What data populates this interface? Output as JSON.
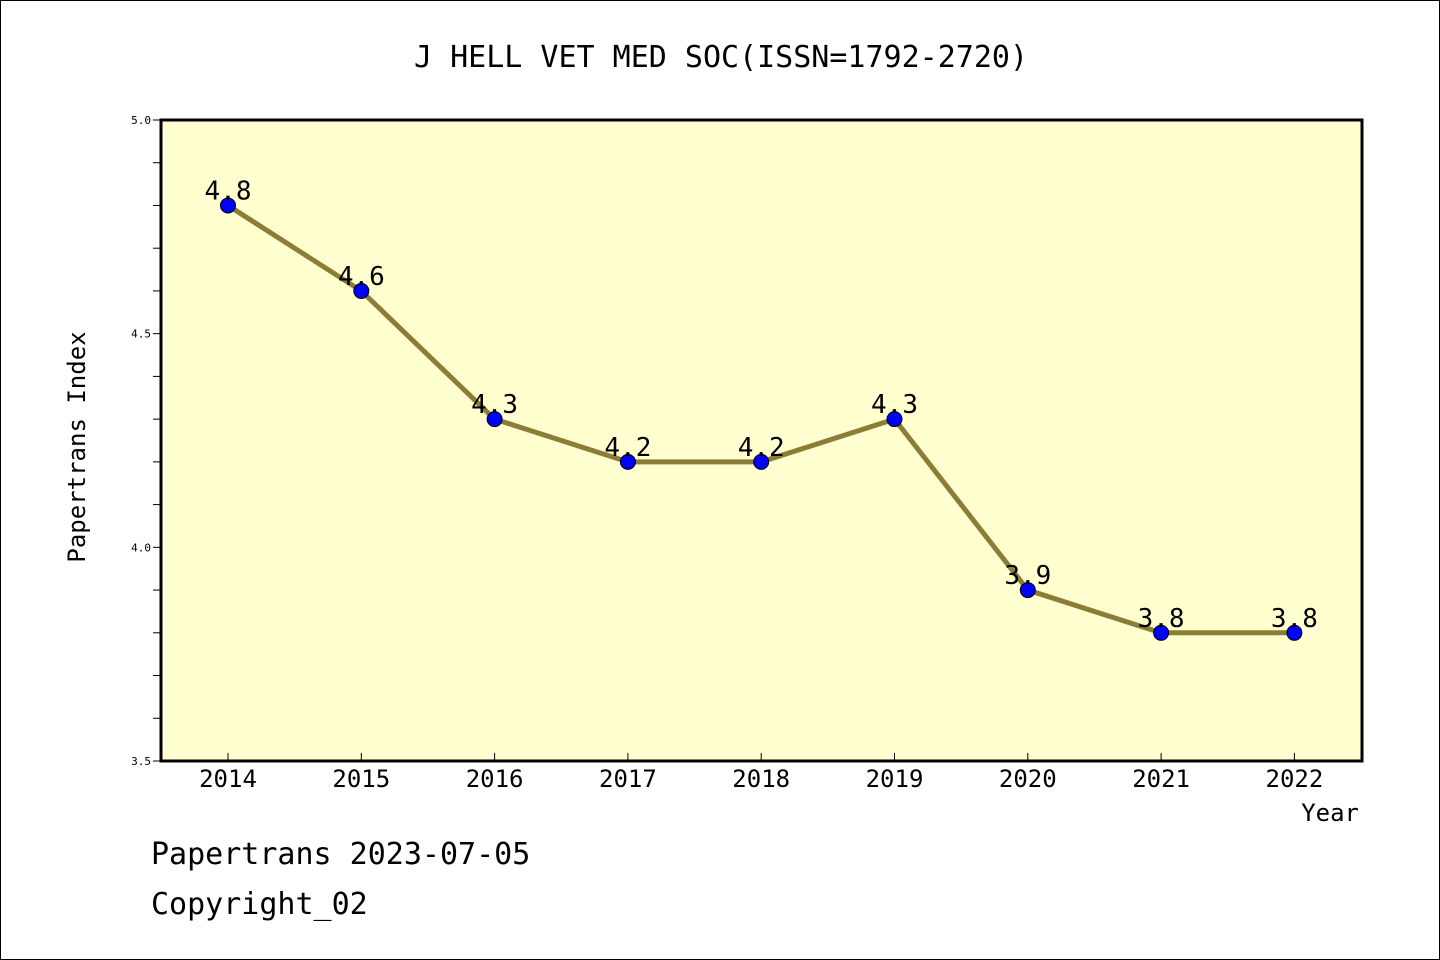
{
  "chart_data": {
    "type": "line",
    "title": "J HELL VET MED SOC(ISSN=1792-2720)",
    "xlabel": "Year",
    "ylabel": "Papertrans Index",
    "categories": [
      "2014",
      "2015",
      "2016",
      "2017",
      "2018",
      "2019",
      "2020",
      "2021",
      "2022"
    ],
    "series": [
      {
        "values": [
          4.8,
          4.6,
          4.3,
          4.2,
          4.2,
          4.3,
          3.9,
          3.8,
          3.8
        ]
      }
    ],
    "data_labels": [
      "4.8",
      "4.6",
      "4.3",
      "4.2",
      "4.2",
      "4.3",
      "3.9",
      "3.8",
      "3.8"
    ],
    "ylim": [
      3.5,
      5.0
    ],
    "yticks": [
      "3.5",
      "4.0",
      "4.5",
      "5.0"
    ],
    "grid": false,
    "colors": {
      "plot_background": "#ffffd0",
      "line": "#8b7d35",
      "marker": "#0000ff"
    }
  },
  "footer": {
    "line1": "Papertrans 2023-07-05",
    "line2": "Copyright_02"
  }
}
